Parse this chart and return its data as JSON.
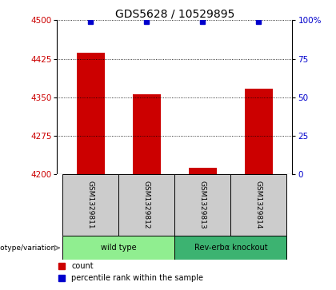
{
  "title": "GDS5628 / 10529895",
  "samples": [
    "GSM1329811",
    "GSM1329812",
    "GSM1329813",
    "GSM1329814"
  ],
  "counts": [
    4437,
    4356,
    4213,
    4366
  ],
  "percentiles": [
    99,
    99,
    99,
    99
  ],
  "ylim_left": [
    4200,
    4500
  ],
  "ylim_right": [
    0,
    100
  ],
  "yticks_left": [
    4200,
    4275,
    4350,
    4425,
    4500
  ],
  "yticks_right": [
    0,
    25,
    50,
    75,
    100
  ],
  "bar_color": "#CC0000",
  "dot_color": "#0000CC",
  "bar_width": 0.5,
  "groups": [
    {
      "label": "wild type",
      "samples": [
        0,
        1
      ],
      "color": "#90EE90"
    },
    {
      "label": "Rev-erbα knockout",
      "samples": [
        2,
        3
      ],
      "color": "#3CB371"
    }
  ],
  "group_label": "genotype/variation",
  "legend_count_label": "count",
  "legend_pct_label": "percentile rank within the sample",
  "title_fontsize": 10,
  "tick_fontsize": 7.5,
  "label_fontsize": 7
}
